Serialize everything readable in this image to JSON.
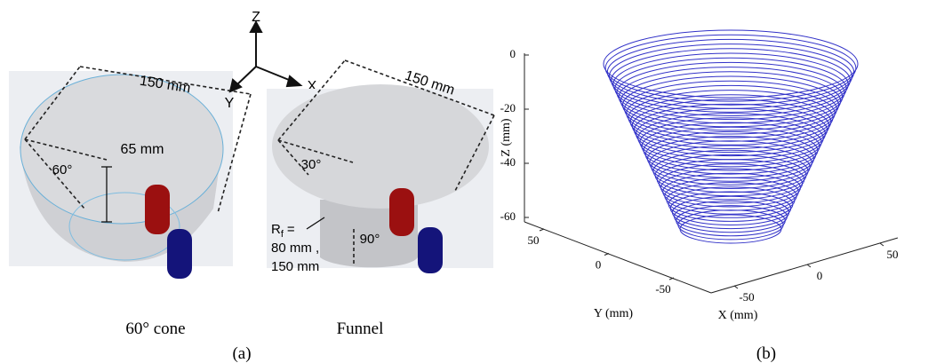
{
  "panel_a": {
    "label": "(a)",
    "axes": {
      "z": "Z",
      "x": "X",
      "y": "Y"
    },
    "cone": {
      "width": "150 mm",
      "height": "65 mm",
      "angle": "60°",
      "caption": "60° cone"
    },
    "funnel": {
      "width": "150 mm",
      "angle": "30°",
      "bend_angle": "90°",
      "radius_symbol": "R",
      "radius_subscript": "f",
      "radius_equals": "=",
      "radius_values": [
        "80 mm ,",
        "150 mm"
      ],
      "caption": "Funnel"
    }
  },
  "panel_b": {
    "label": "(b)",
    "z_axis": {
      "label": "Z (mm)",
      "ticks": [
        0,
        -20,
        -40,
        -60
      ]
    },
    "y_axis": {
      "label": "Y (mm)",
      "ticks": [
        50,
        0,
        -50
      ]
    },
    "x_axis": {
      "label": "X (mm)",
      "ticks": [
        -50,
        0,
        50
      ]
    }
  }
}
